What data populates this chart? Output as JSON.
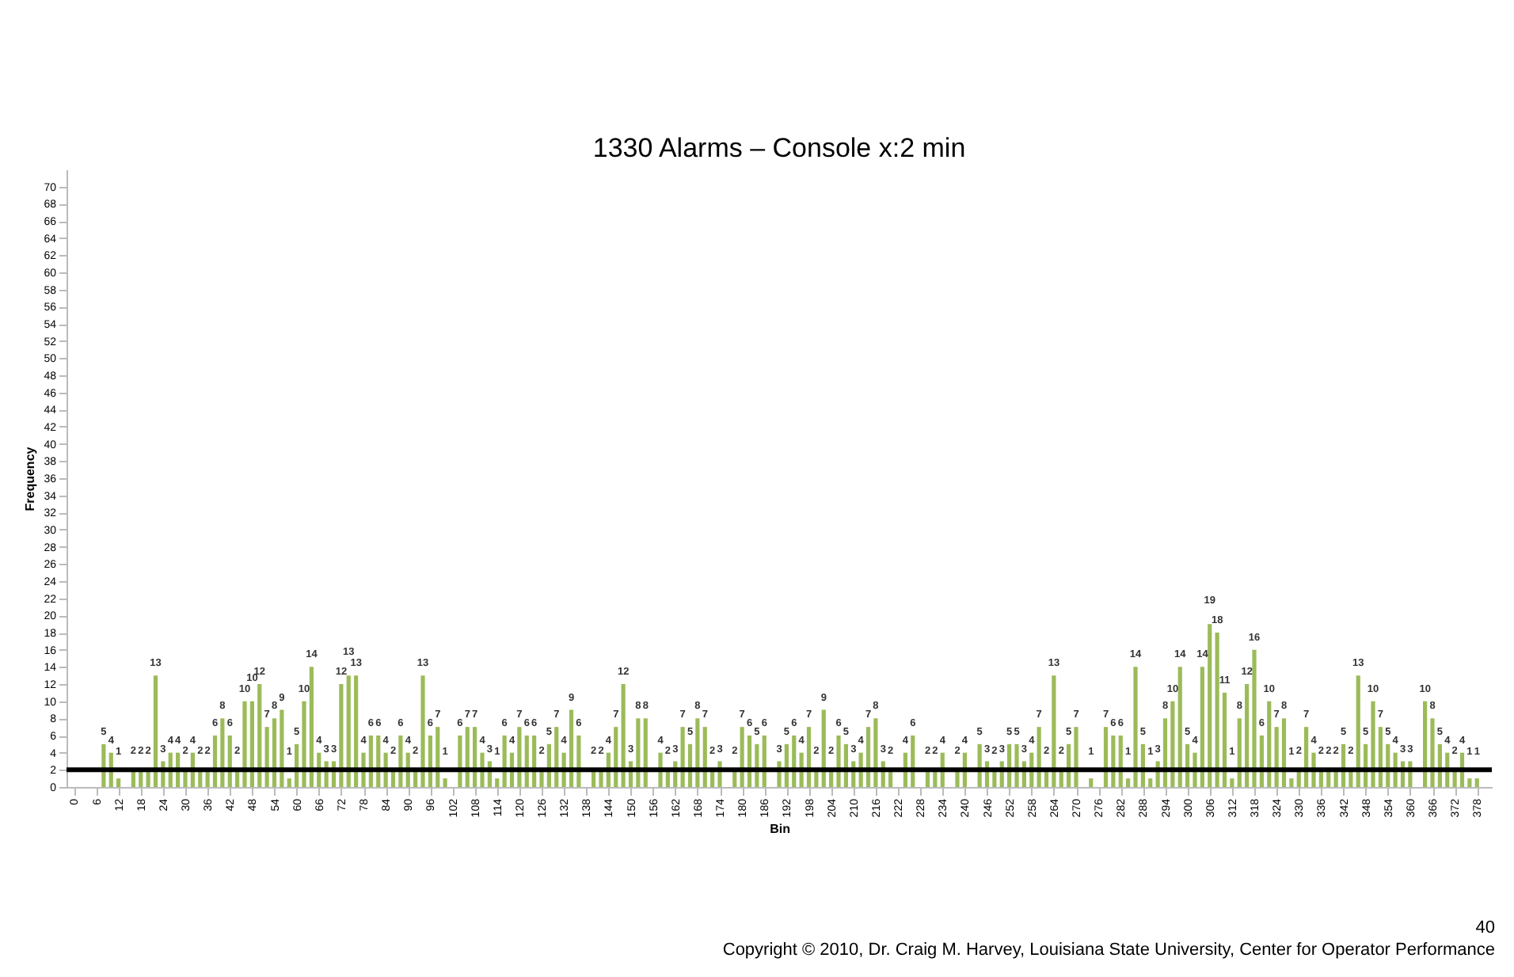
{
  "chart_data": {
    "type": "bar",
    "title": "1330 Alarms – Console x:2 min",
    "xlabel": "Bin",
    "ylabel": "Frequency",
    "x": [
      8,
      10,
      12,
      16,
      18,
      20,
      22,
      24,
      26,
      28,
      30,
      32,
      34,
      36,
      38,
      40,
      42,
      44,
      46,
      48,
      50,
      52,
      54,
      56,
      58,
      60,
      62,
      64,
      66,
      68,
      70,
      72,
      74,
      76,
      78,
      80,
      82,
      84,
      86,
      88,
      90,
      92,
      94,
      96,
      98,
      100,
      104,
      106,
      108,
      110,
      112,
      114,
      116,
      118,
      120,
      122,
      124,
      126,
      128,
      130,
      132,
      134,
      136,
      140,
      142,
      144,
      146,
      148,
      150,
      152,
      154,
      158,
      160,
      162,
      164,
      166,
      168,
      170,
      172,
      174,
      178,
      180,
      182,
      184,
      186,
      190,
      192,
      194,
      196,
      198,
      200,
      202,
      204,
      206,
      208,
      210,
      212,
      214,
      216,
      218,
      220,
      224,
      226,
      230,
      232,
      234,
      238,
      240,
      244,
      246,
      248,
      250,
      252,
      254,
      256,
      258,
      260,
      262,
      264,
      266,
      268,
      270,
      274,
      278,
      280,
      282,
      284,
      286,
      288,
      290,
      292,
      294,
      296,
      298,
      300,
      302,
      304,
      306,
      308,
      310,
      312,
      314,
      316,
      318,
      320,
      322,
      324,
      326,
      328,
      330,
      332,
      334,
      336,
      338,
      340,
      342,
      344,
      346,
      348,
      350,
      352,
      354,
      356,
      358,
      360,
      364,
      366,
      368,
      370,
      372,
      374,
      376,
      378
    ],
    "values": [
      5,
      4,
      1,
      2,
      2,
      2,
      13,
      3,
      4,
      4,
      2,
      4,
      2,
      2,
      6,
      8,
      6,
      2,
      10,
      10,
      12,
      7,
      8,
      9,
      1,
      5,
      10,
      14,
      4,
      3,
      3,
      12,
      13,
      13,
      4,
      6,
      6,
      4,
      2,
      6,
      4,
      2,
      13,
      6,
      7,
      1,
      6,
      7,
      7,
      4,
      3,
      1,
      6,
      4,
      7,
      6,
      6,
      2,
      5,
      7,
      4,
      9,
      6,
      2,
      2,
      4,
      7,
      12,
      3,
      8,
      8,
      4,
      2,
      3,
      7,
      5,
      8,
      7,
      2,
      3,
      2,
      7,
      6,
      5,
      6,
      3,
      5,
      6,
      4,
      7,
      2,
      9,
      2,
      6,
      5,
      3,
      4,
      7,
      8,
      3,
      2,
      4,
      6,
      2,
      2,
      4,
      2,
      4,
      5,
      3,
      2,
      3,
      5,
      5,
      3,
      4,
      7,
      2,
      13,
      2,
      5,
      7,
      1,
      7,
      6,
      6,
      1,
      14,
      5,
      1,
      3,
      8,
      10,
      14,
      5,
      4,
      14,
      19,
      18,
      11,
      1,
      8,
      12,
      16,
      6,
      10,
      7,
      8,
      1,
      2,
      7,
      4,
      2,
      2,
      2,
      5,
      2,
      13,
      5,
      10,
      7,
      5,
      4,
      3,
      3,
      10,
      8,
      5,
      4,
      2,
      4,
      1,
      1
    ],
    "color": "#9bbb59",
    "data_labels": true,
    "xlim": [
      -2,
      382
    ],
    "xticks": [
      0,
      6,
      12,
      18,
      24,
      30,
      36,
      42,
      48,
      54,
      60,
      66,
      72,
      78,
      84,
      90,
      96,
      102,
      108,
      114,
      120,
      126,
      132,
      138,
      144,
      150,
      156,
      162,
      168,
      174,
      180,
      186,
      192,
      198,
      204,
      210,
      216,
      222,
      228,
      234,
      240,
      246,
      252,
      258,
      264,
      270,
      276,
      282,
      288,
      294,
      300,
      306,
      312,
      318,
      324,
      330,
      336,
      342,
      348,
      354,
      360,
      366,
      372,
      378
    ],
    "ylim": [
      0,
      72
    ],
    "yticks": [
      0,
      2,
      4,
      6,
      8,
      10,
      12,
      14,
      16,
      18,
      20,
      22,
      24,
      26,
      28,
      30,
      32,
      34,
      36,
      38,
      40,
      42,
      44,
      46,
      48,
      50,
      52,
      54,
      56,
      58,
      60,
      62,
      64,
      66,
      68,
      70
    ],
    "ref_lines": [
      {
        "axis": "y",
        "value": 2,
        "color": "#000000"
      }
    ],
    "annotations": [
      "40",
      "Copyright © 2010, Dr. Craig M. Harvey, Louisiana State University, Center for Operator Performance"
    ]
  }
}
